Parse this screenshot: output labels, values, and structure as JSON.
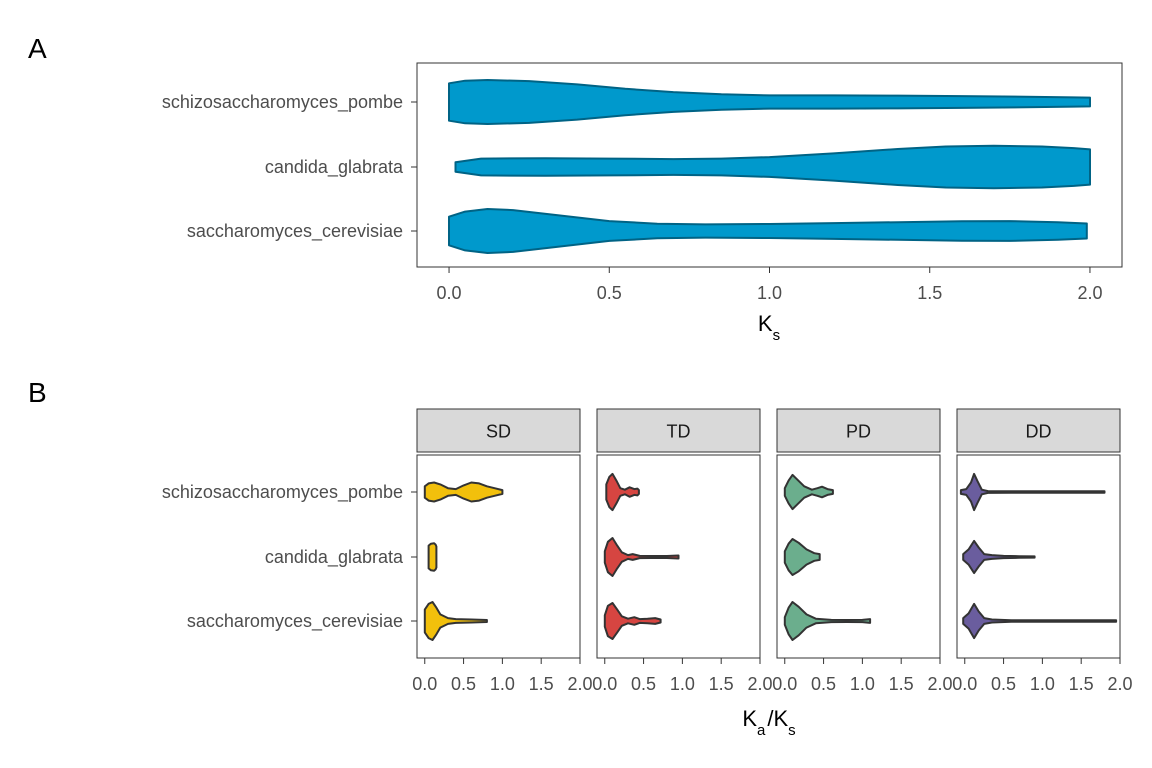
{
  "chart_data": [
    {
      "tag": "A",
      "type": "violin",
      "orientation": "horizontal",
      "xlabel": {
        "main": "K",
        "sub": "s"
      },
      "xlim": [
        -0.1,
        2.1
      ],
      "xticks": [
        "0.0",
        "0.5",
        "1.0",
        "1.5",
        "2.0"
      ],
      "xtick_values": [
        0,
        0.5,
        1.0,
        1.5,
        2.0
      ],
      "categories": [
        "schizosaccharomyces_pombe",
        "candida_glabrata",
        "saccharomyces_cerevisiae"
      ],
      "fill_color": "#0099CC",
      "stroke_color": "#006385",
      "grid": false,
      "violins": [
        {
          "category": "schizosaccharomyces_pombe",
          "profile": [
            [
              0.0,
              0.85
            ],
            [
              0.05,
              0.97
            ],
            [
              0.12,
              1.0
            ],
            [
              0.25,
              0.95
            ],
            [
              0.4,
              0.8
            ],
            [
              0.55,
              0.6
            ],
            [
              0.7,
              0.45
            ],
            [
              0.85,
              0.35
            ],
            [
              1.0,
              0.3
            ],
            [
              1.2,
              0.3
            ],
            [
              1.4,
              0.29
            ],
            [
              1.6,
              0.27
            ],
            [
              1.8,
              0.24
            ],
            [
              1.95,
              0.21
            ],
            [
              2.0,
              0.2
            ]
          ]
        },
        {
          "category": "candida_glabrata",
          "profile": [
            [
              0.02,
              0.22
            ],
            [
              0.1,
              0.38
            ],
            [
              0.3,
              0.4
            ],
            [
              0.5,
              0.38
            ],
            [
              0.7,
              0.36
            ],
            [
              0.85,
              0.38
            ],
            [
              1.0,
              0.45
            ],
            [
              1.2,
              0.62
            ],
            [
              1.4,
              0.82
            ],
            [
              1.55,
              0.93
            ],
            [
              1.7,
              0.97
            ],
            [
              1.85,
              0.93
            ],
            [
              1.95,
              0.86
            ],
            [
              2.0,
              0.8
            ]
          ]
        },
        {
          "category": "saccharomyces_cerevisiae",
          "profile": [
            [
              0.0,
              0.65
            ],
            [
              0.05,
              0.88
            ],
            [
              0.12,
              1.0
            ],
            [
              0.2,
              0.95
            ],
            [
              0.35,
              0.7
            ],
            [
              0.5,
              0.45
            ],
            [
              0.65,
              0.33
            ],
            [
              0.8,
              0.3
            ],
            [
              1.0,
              0.32
            ],
            [
              1.2,
              0.36
            ],
            [
              1.4,
              0.4
            ],
            [
              1.6,
              0.44
            ],
            [
              1.75,
              0.45
            ],
            [
              1.9,
              0.4
            ],
            [
              1.99,
              0.34
            ]
          ]
        }
      ]
    },
    {
      "tag": "B",
      "type": "violin",
      "orientation": "horizontal",
      "xlabel": {
        "main1": "K",
        "sub1": "a",
        "sep": "/",
        "main2": "K",
        "sub2": "s"
      },
      "xlim": [
        -0.1,
        2.0
      ],
      "xticks": [
        "0.0",
        "0.5",
        "1.0",
        "1.5",
        "2.0"
      ],
      "xtick_values": [
        0,
        0.5,
        1.0,
        1.5,
        2.0
      ],
      "categories": [
        "schizosaccharomyces_pombe",
        "candida_glabrata",
        "saccharomyces_cerevisiae"
      ],
      "stroke_color": "#333333",
      "grid": false,
      "panels": [
        {
          "strip": "SD",
          "color": "#F2C00C",
          "violins": [
            {
              "category": "schizosaccharomyces_pombe",
              "profile": [
                [
                  0.0,
                  0.3
                ],
                [
                  0.05,
                  0.45
                ],
                [
                  0.12,
                  0.5
                ],
                [
                  0.2,
                  0.4
                ],
                [
                  0.3,
                  0.2
                ],
                [
                  0.4,
                  0.15
                ],
                [
                  0.5,
                  0.35
                ],
                [
                  0.6,
                  0.5
                ],
                [
                  0.7,
                  0.45
                ],
                [
                  0.8,
                  0.3
                ],
                [
                  0.9,
                  0.2
                ],
                [
                  1.0,
                  0.1
                ]
              ]
            },
            {
              "category": "candida_glabrata",
              "profile": [
                [
                  0.05,
                  0.6
                ],
                [
                  0.08,
                  0.7
                ],
                [
                  0.12,
                  0.72
                ],
                [
                  0.14,
                  0.65
                ],
                [
                  0.15,
                  0.55
                ]
              ]
            },
            {
              "category": "saccharomyces_cerevisiae",
              "profile": [
                [
                  0.0,
                  0.6
                ],
                [
                  0.05,
                  0.9
                ],
                [
                  0.1,
                  1.0
                ],
                [
                  0.15,
                  0.7
                ],
                [
                  0.2,
                  0.35
                ],
                [
                  0.3,
                  0.15
                ],
                [
                  0.4,
                  0.1
                ],
                [
                  0.6,
                  0.08
                ],
                [
                  0.8,
                  0.05
                ]
              ]
            }
          ]
        },
        {
          "strip": "TD",
          "color": "#D64541",
          "violins": [
            {
              "category": "schizosaccharomyces_pombe",
              "profile": [
                [
                  0.02,
                  0.4
                ],
                [
                  0.06,
                  0.8
                ],
                [
                  0.1,
                  0.95
                ],
                [
                  0.15,
                  0.6
                ],
                [
                  0.2,
                  0.2
                ],
                [
                  0.26,
                  0.12
                ],
                [
                  0.32,
                  0.25
                ],
                [
                  0.38,
                  0.15
                ],
                [
                  0.42,
                  0.18
                ],
                [
                  0.44,
                  0.1
                ]
              ]
            },
            {
              "category": "candida_glabrata",
              "profile": [
                [
                  0.0,
                  0.3
                ],
                [
                  0.04,
                  0.8
                ],
                [
                  0.1,
                  1.0
                ],
                [
                  0.16,
                  0.6
                ],
                [
                  0.22,
                  0.25
                ],
                [
                  0.3,
                  0.1
                ],
                [
                  0.36,
                  0.15
                ],
                [
                  0.45,
                  0.06
                ],
                [
                  0.6,
                  0.05
                ],
                [
                  0.8,
                  0.05
                ],
                [
                  0.95,
                  0.08
                ]
              ]
            },
            {
              "category": "saccharomyces_cerevisiae",
              "profile": [
                [
                  0.0,
                  0.3
                ],
                [
                  0.04,
                  0.8
                ],
                [
                  0.1,
                  0.95
                ],
                [
                  0.16,
                  0.6
                ],
                [
                  0.22,
                  0.25
                ],
                [
                  0.3,
                  0.12
                ],
                [
                  0.38,
                  0.2
                ],
                [
                  0.45,
                  0.1
                ],
                [
                  0.55,
                  0.12
                ],
                [
                  0.65,
                  0.15
                ],
                [
                  0.72,
                  0.08
                ]
              ]
            }
          ]
        },
        {
          "strip": "PD",
          "color": "#6BAE8D",
          "violins": [
            {
              "category": "schizosaccharomyces_pombe",
              "profile": [
                [
                  0.0,
                  0.2
                ],
                [
                  0.05,
                  0.6
                ],
                [
                  0.1,
                  0.9
                ],
                [
                  0.15,
                  0.7
                ],
                [
                  0.25,
                  0.3
                ],
                [
                  0.35,
                  0.12
                ],
                [
                  0.42,
                  0.2
                ],
                [
                  0.48,
                  0.28
                ],
                [
                  0.55,
                  0.15
                ],
                [
                  0.62,
                  0.1
                ]
              ]
            },
            {
              "category": "candida_glabrata",
              "profile": [
                [
                  0.0,
                  0.3
                ],
                [
                  0.05,
                  0.7
                ],
                [
                  0.1,
                  0.95
                ],
                [
                  0.18,
                  0.75
                ],
                [
                  0.28,
                  0.4
                ],
                [
                  0.38,
                  0.2
                ],
                [
                  0.45,
                  0.15
                ]
              ]
            },
            {
              "category": "saccharomyces_cerevisiae",
              "profile": [
                [
                  0.0,
                  0.2
                ],
                [
                  0.05,
                  0.7
                ],
                [
                  0.1,
                  1.0
                ],
                [
                  0.18,
                  0.75
                ],
                [
                  0.28,
                  0.35
                ],
                [
                  0.4,
                  0.12
                ],
                [
                  0.6,
                  0.06
                ],
                [
                  0.8,
                  0.05
                ],
                [
                  1.0,
                  0.06
                ],
                [
                  1.1,
                  0.1
                ]
              ]
            }
          ]
        },
        {
          "strip": "DD",
          "color": "#6A5D9E",
          "violins": [
            {
              "category": "schizosaccharomyces_pombe",
              "profile": [
                [
                  -0.05,
                  0.1
                ],
                [
                  0.02,
                  0.15
                ],
                [
                  0.08,
                  0.5
                ],
                [
                  0.12,
                  0.95
                ],
                [
                  0.16,
                  0.6
                ],
                [
                  0.22,
                  0.12
                ],
                [
                  0.3,
                  0.05
                ],
                [
                  0.6,
                  0.04
                ],
                [
                  1.0,
                  0.04
                ],
                [
                  1.4,
                  0.04
                ],
                [
                  1.8,
                  0.04
                ]
              ]
            },
            {
              "category": "candida_glabrata",
              "profile": [
                [
                  -0.02,
                  0.15
                ],
                [
                  0.05,
                  0.4
                ],
                [
                  0.12,
                  0.85
                ],
                [
                  0.18,
                  0.5
                ],
                [
                  0.25,
                  0.15
                ],
                [
                  0.35,
                  0.1
                ],
                [
                  0.5,
                  0.06
                ],
                [
                  0.7,
                  0.04
                ],
                [
                  0.9,
                  0.03
                ]
              ]
            },
            {
              "category": "saccharomyces_cerevisiae",
              "profile": [
                [
                  -0.02,
                  0.15
                ],
                [
                  0.05,
                  0.4
                ],
                [
                  0.12,
                  0.9
                ],
                [
                  0.18,
                  0.5
                ],
                [
                  0.25,
                  0.15
                ],
                [
                  0.35,
                  0.08
                ],
                [
                  0.6,
                  0.04
                ],
                [
                  1.0,
                  0.04
                ],
                [
                  1.5,
                  0.04
                ],
                [
                  1.95,
                  0.04
                ]
              ]
            }
          ]
        }
      ]
    }
  ]
}
